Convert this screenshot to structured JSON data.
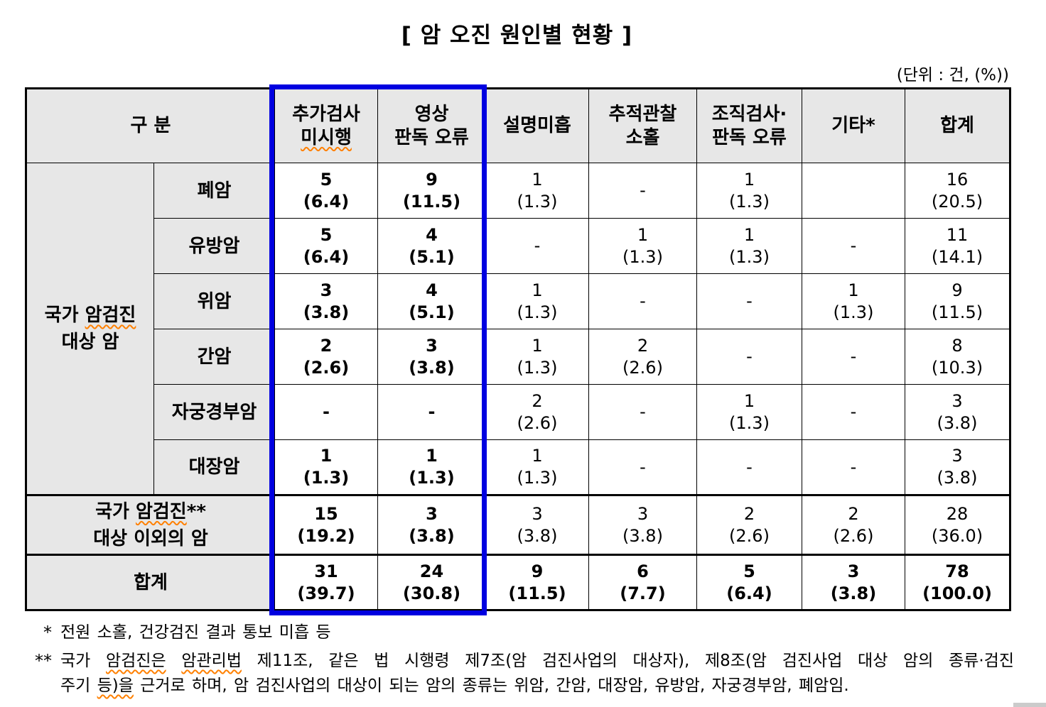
{
  "page": {
    "title": "[ 암 오진 원인별 현황 ]",
    "unit_label": "(단위 : 건, (%))"
  },
  "colors": {
    "highlight_blue": "#0000e0",
    "misspell_orange": "#ff8000",
    "header_gray": "#e7e7e7"
  },
  "table": {
    "corner_header": "구 분",
    "column_headers": [
      {
        "segments": [
          {
            "t": "추가검사\n"
          },
          {
            "t": "미시행",
            "sq": true
          }
        ],
        "highlighted": true
      },
      {
        "segments": [
          {
            "t": "영상\n판독 오류"
          }
        ],
        "highlighted": true
      },
      {
        "segments": [
          {
            "t": "설명미흡"
          }
        ]
      },
      {
        "segments": [
          {
            "t": "추적관찰\n소홀"
          }
        ]
      },
      {
        "segments": [
          {
            "t": "조직검사·\n판독 오류"
          }
        ]
      },
      {
        "segments": [
          {
            "t": "기타*"
          }
        ]
      },
      {
        "segments": [
          {
            "t": "합계"
          }
        ]
      }
    ],
    "group_label": {
      "segments": [
        {
          "t": "국가 "
        },
        {
          "t": "암검진",
          "sq": true
        },
        {
          "t": "\n대상 암"
        }
      ]
    },
    "rows": [
      {
        "label": "폐암",
        "cells": [
          "5\n(6.4)",
          "9\n(11.5)",
          "1\n(1.3)",
          "-",
          "1\n(1.3)",
          "",
          "16\n(20.5)"
        ]
      },
      {
        "label": "유방암",
        "cells": [
          "5\n(6.4)",
          "4\n(5.1)",
          "-",
          "1\n(1.3)",
          "1\n(1.3)",
          "-",
          "11\n(14.1)"
        ]
      },
      {
        "label": "위암",
        "cells": [
          "3\n(3.8)",
          "4\n(5.1)",
          "1\n(1.3)",
          "-",
          "-",
          "1\n(1.3)",
          "9\n(11.5)"
        ]
      },
      {
        "label": "간암",
        "cells": [
          "2\n(2.6)",
          "3\n(3.8)",
          "1\n(1.3)",
          "2\n(2.6)",
          "-",
          "-",
          "8\n(10.3)"
        ]
      },
      {
        "label": "자궁경부암",
        "cells": [
          "-",
          "-",
          "2\n(2.6)",
          "-",
          "1\n(1.3)",
          "-",
          "3\n(3.8)"
        ]
      },
      {
        "label": "대장암",
        "cells": [
          "1\n(1.3)",
          "1\n(1.3)",
          "1\n(1.3)",
          "-",
          "-",
          "-",
          "3\n(3.8)"
        ]
      },
      {
        "label_segments": [
          {
            "t": "국가 "
          },
          {
            "t": "암검진",
            "sq": true
          },
          {
            "t": "**\n대상 이외의 암"
          }
        ],
        "thick_top": true,
        "cells": [
          "15\n(19.2)",
          "3\n(3.8)",
          "3\n(3.8)",
          "3\n(3.8)",
          "2\n(2.6)",
          "2\n(2.6)",
          "28\n(36.0)"
        ]
      },
      {
        "label_segments": [
          {
            "t": "합계"
          }
        ],
        "thick_top": true,
        "bold": true,
        "cells": [
          "31\n(39.7)",
          "24\n(30.8)",
          "9\n(11.5)",
          "6\n(7.7)",
          "5\n(6.4)",
          "3\n(3.8)",
          "78\n(100.0)"
        ]
      }
    ]
  },
  "footnotes": {
    "fn1_marker": "*",
    "fn1_text": "전원 소홀, 건강검진 결과 통보 미흡 등",
    "fn2_marker": "**",
    "fn2_line1": [
      {
        "t": "국가 "
      },
      {
        "t": "암검진은",
        "sq": true
      },
      {
        "t": " "
      },
      {
        "t": "암관리법",
        "sq": true
      },
      {
        "t": " 제11조, 같은 법 시행령 제7조(암 검진사업의 대상자), 제8조(암 검진사업 대상 암의 종류·검진"
      }
    ],
    "fn2_line2": [
      {
        "t": "주기 "
      },
      {
        "t": "등)을",
        "sq": true
      },
      {
        "t": " 근거로 하며, 암 검진사업의 대상이 되는 암의 종류는 위암, 간암, 대장암, 유방암, 자궁경부암, 폐암임."
      }
    ]
  }
}
